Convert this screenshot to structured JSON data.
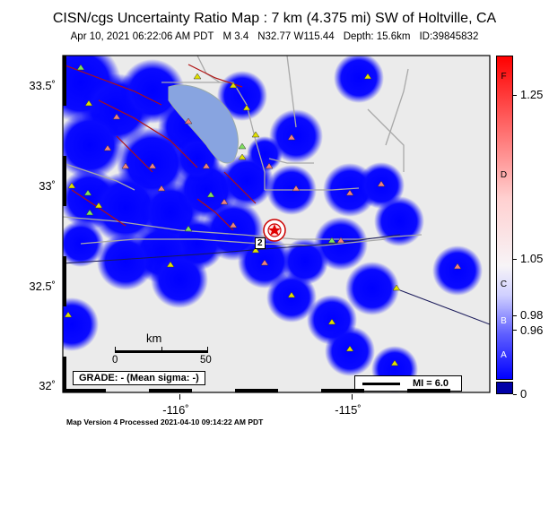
{
  "header": {
    "title": "CISN/cgs Uncertainty Ratio Map : 7 km (4.375 mi) SW of Holtville, CA",
    "date": "Apr 10, 2021 06:22:06 AM PDT",
    "magnitude": "M 3.4",
    "location": "N32.77 W115.44",
    "depth": "Depth: 15.6km",
    "event_id": "ID:39845832"
  },
  "axes": {
    "lat_labels": [
      "33.5˚",
      "33˚",
      "32.5˚",
      "32˚"
    ],
    "lon_labels": [
      "-116˚",
      "-115˚"
    ]
  },
  "map": {
    "epicenter_label": "2",
    "grade_text": "GRADE: - (Mean sigma: -)",
    "mi_legend": "MI = 6.0",
    "scale_title": "km",
    "scale_labels": [
      "0",
      "50"
    ]
  },
  "colorbar": {
    "letters": [
      "F",
      "D",
      "C",
      "B",
      "A"
    ],
    "values": [
      "1.25",
      "1.05",
      "0.98",
      "0.96",
      "0"
    ],
    "colors": {
      "high": "#ff0000",
      "mid": "#f7f4f7",
      "low": "#0000ff",
      "floor": "#0000a8"
    }
  },
  "footer": "Map Version 4 Processed 2021-04-10 09:14:22 AM PDT"
}
